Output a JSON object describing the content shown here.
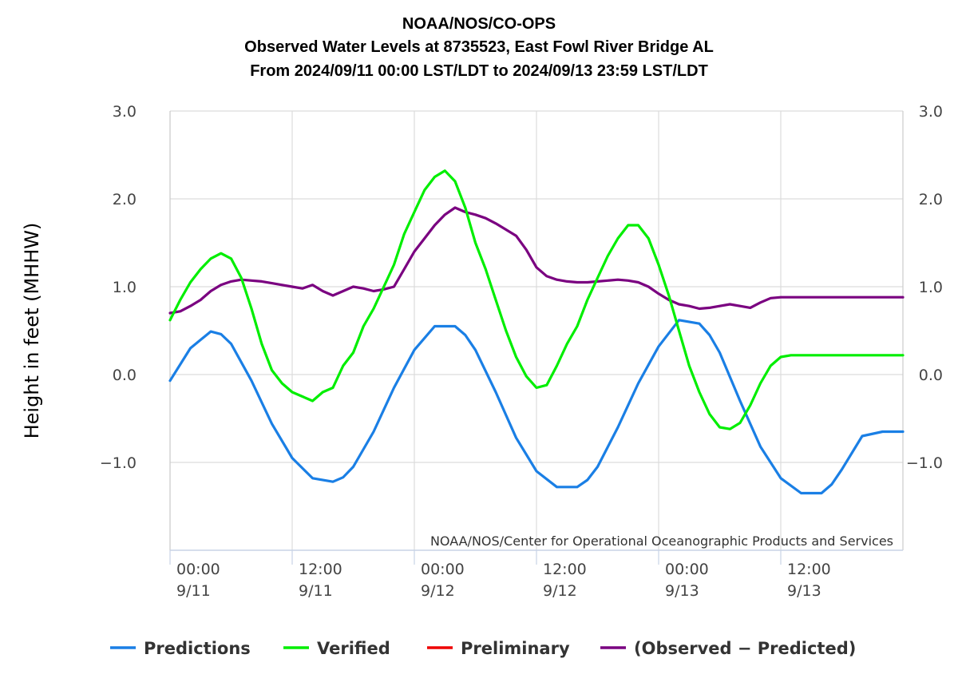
{
  "chart_data": {
    "type": "line",
    "title": [
      "NOAA/NOS/CO-OPS",
      "Observed Water Levels at 8735523, East Fowl River Bridge AL",
      "From 2024/09/11 00:00 LST/LDT to 2024/09/13 23:59 LST/LDT"
    ],
    "ylabel": "Height in feet (MHHW)",
    "xlabel": "",
    "credit": "NOAA/NOS/Center for Operational Oceanographic Products and Services",
    "ylim": [
      -2.0,
      3.0
    ],
    "xlim_hours": [
      0,
      72
    ],
    "y_ticks": [
      {
        "value": 3.0,
        "label": "3.0"
      },
      {
        "value": 2.0,
        "label": "2.0"
      },
      {
        "value": 1.0,
        "label": "1.0"
      },
      {
        "value": 0.0,
        "label": "0.0"
      },
      {
        "value": -1.0,
        "label": "−1.0"
      }
    ],
    "x_ticks": [
      {
        "hour": 0,
        "time": "00:00",
        "date": "9/11"
      },
      {
        "hour": 12,
        "time": "12:00",
        "date": "9/11"
      },
      {
        "hour": 24,
        "time": "00:00",
        "date": "9/12"
      },
      {
        "hour": 36,
        "time": "12:00",
        "date": "9/12"
      },
      {
        "hour": 48,
        "time": "00:00",
        "date": "9/13"
      },
      {
        "hour": 60,
        "time": "12:00",
        "date": "9/13"
      }
    ],
    "grid": true,
    "legend_position": "bottom",
    "series": [
      {
        "name": "Predictions",
        "color": "#1a7fe5",
        "x": [
          0,
          2,
          4,
          5,
          6,
          8,
          10,
          12,
          14,
          16,
          17,
          18,
          20,
          22,
          24,
          26,
          28,
          29,
          30,
          32,
          34,
          36,
          38,
          40,
          41,
          42,
          44,
          46,
          48,
          50,
          52,
          53,
          54,
          56,
          58,
          60,
          62,
          64,
          65,
          66,
          68,
          70,
          72
        ],
        "y": [
          -0.07,
          0.3,
          0.49,
          0.46,
          0.35,
          -0.07,
          -0.56,
          -0.95,
          -1.18,
          -1.22,
          -1.17,
          -1.05,
          -0.65,
          -0.15,
          0.28,
          0.55,
          0.55,
          0.45,
          0.28,
          -0.2,
          -0.72,
          -1.1,
          -1.28,
          -1.28,
          -1.2,
          -1.05,
          -0.6,
          -0.1,
          0.32,
          0.62,
          0.58,
          0.45,
          0.25,
          -0.3,
          -0.82,
          -1.18,
          -1.35,
          -1.35,
          -1.25,
          -1.08,
          -0.7,
          -0.65,
          -0.65
        ]
      },
      {
        "name": "Verified",
        "color": "#00ee00",
        "x": [
          0,
          1,
          2,
          3,
          4,
          5,
          6,
          7,
          8,
          9,
          10,
          11,
          12,
          13,
          14,
          15,
          16,
          17,
          18,
          19,
          20,
          21,
          22,
          23,
          24,
          25,
          26,
          27,
          28,
          29,
          30,
          31,
          32,
          33,
          34,
          35,
          36,
          37,
          38,
          39,
          40,
          41,
          42,
          43,
          44,
          45,
          46,
          47,
          48,
          49,
          50,
          51,
          52,
          53,
          54,
          55,
          56,
          57,
          58,
          59,
          60,
          61,
          62,
          63,
          64,
          65,
          66,
          67,
          68,
          69,
          70,
          71,
          72
        ],
        "y": [
          0.62,
          0.85,
          1.05,
          1.2,
          1.32,
          1.38,
          1.32,
          1.1,
          0.75,
          0.35,
          0.05,
          -0.1,
          -0.2,
          -0.25,
          -0.3,
          -0.2,
          -0.15,
          0.1,
          0.25,
          0.55,
          0.75,
          1.0,
          1.25,
          1.6,
          1.85,
          2.1,
          2.25,
          2.32,
          2.2,
          1.9,
          1.5,
          1.2,
          0.85,
          0.5,
          0.2,
          -0.02,
          -0.15,
          -0.12,
          0.1,
          0.35,
          0.55,
          0.85,
          1.1,
          1.35,
          1.55,
          1.7,
          1.7,
          1.55,
          1.25,
          0.9,
          0.5,
          0.1,
          -0.2,
          -0.45,
          -0.6,
          -0.62,
          -0.55,
          -0.35,
          -0.1,
          0.1,
          0.2,
          0.22,
          0.22,
          0.22,
          0.22,
          0.22,
          0.22,
          0.22,
          0.22,
          0.22,
          0.22,
          0.22,
          0.22
        ]
      },
      {
        "name": "Preliminary",
        "color": "#ee0000",
        "x": [],
        "y": []
      },
      {
        "name": "(Observed − Predicted)",
        "color": "#7a0080",
        "x": [
          0,
          1,
          2,
          3,
          4,
          5,
          6,
          7,
          8,
          9,
          10,
          11,
          12,
          13,
          14,
          15,
          16,
          17,
          18,
          19,
          20,
          21,
          22,
          23,
          24,
          25,
          26,
          27,
          28,
          29,
          30,
          31,
          32,
          33,
          34,
          35,
          36,
          37,
          38,
          39,
          40,
          41,
          42,
          43,
          44,
          45,
          46,
          47,
          48,
          49,
          50,
          51,
          52,
          53,
          54,
          55,
          56,
          57,
          58,
          59,
          60,
          61,
          62,
          63,
          64,
          65,
          66,
          67,
          68,
          69,
          70,
          71,
          72
        ],
        "y": [
          0.7,
          0.72,
          0.78,
          0.85,
          0.95,
          1.02,
          1.06,
          1.08,
          1.07,
          1.06,
          1.04,
          1.02,
          1.0,
          0.98,
          1.02,
          0.95,
          0.9,
          0.95,
          1.0,
          0.98,
          0.95,
          0.97,
          1.0,
          1.2,
          1.4,
          1.55,
          1.7,
          1.82,
          1.9,
          1.85,
          1.82,
          1.78,
          1.72,
          1.65,
          1.58,
          1.42,
          1.22,
          1.12,
          1.08,
          1.06,
          1.05,
          1.05,
          1.06,
          1.07,
          1.08,
          1.07,
          1.05,
          1.0,
          0.92,
          0.85,
          0.8,
          0.78,
          0.75,
          0.76,
          0.78,
          0.8,
          0.78,
          0.76,
          0.82,
          0.87,
          0.88,
          0.88,
          0.88,
          0.88,
          0.88,
          0.88,
          0.88,
          0.88,
          0.88,
          0.88,
          0.88,
          0.88,
          0.88
        ]
      }
    ]
  }
}
